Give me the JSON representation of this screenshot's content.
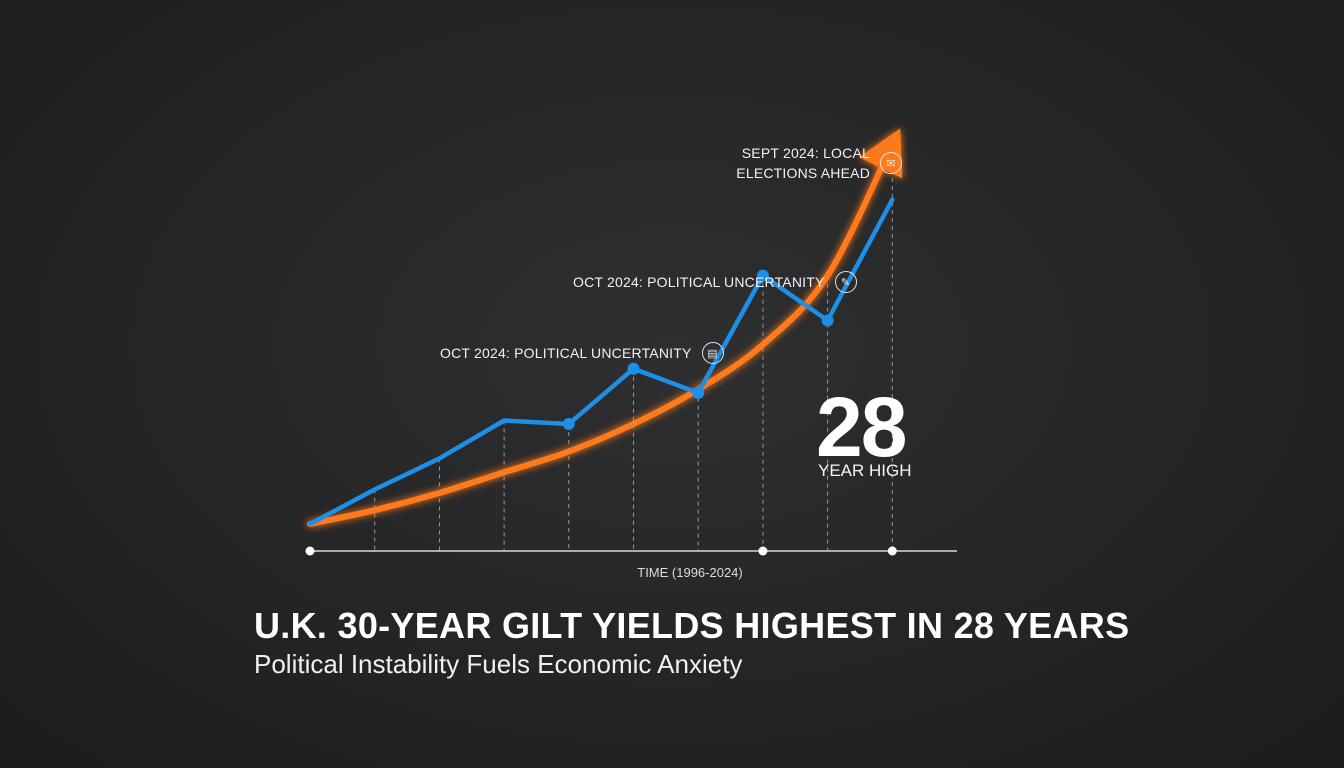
{
  "chart_data": {
    "type": "line",
    "title": "U.K. 30-YEAR GILT YIELDS HIGHEST IN 28 YEARS",
    "subtitle": "Political Instability Fuels Economic Anxiety",
    "xlabel": "TIME (1996-2024)",
    "ylabel": "",
    "grid": "vertical dashed guides",
    "series": [
      {
        "values": [
          0,
          10,
          19,
          30,
          29,
          45,
          38,
          72,
          59,
          94
        ],
        "color": "#1e8fe6"
      },
      {
        "values": [
          0,
          4,
          9,
          15,
          21,
          29,
          39,
          52,
          72,
          110
        ],
        "color": "#ff7a1f"
      }
    ],
    "ylim": [
      0,
      120
    ],
    "annotations": [
      {
        "text": "OCT 2024: POLITICAL UNCERTANITY",
        "icon": "calendar-icon"
      },
      {
        "text": "OCT 2024: POLITICAL UNCERTANITY",
        "icon": "pen-icon"
      },
      {
        "text": "SEPT 2024: LOCAL ELECTIONS AHEAD",
        "icon": "ballot-icon"
      }
    ],
    "highlight": {
      "number": "28",
      "label": "YEAR HIGH"
    }
  }
}
